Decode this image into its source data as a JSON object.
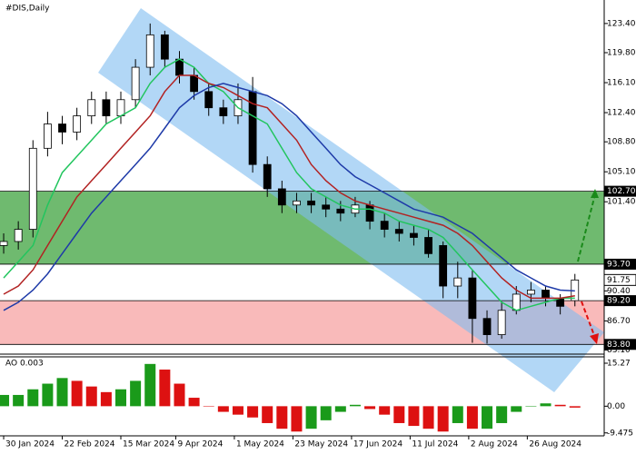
{
  "chart_data": [
    {
      "type": "candlestick",
      "title": "#DIS,Daily",
      "xlim": [
        -1,
        164
      ],
      "xticks": [
        {
          "value": 0,
          "label": "30 Jan 2024"
        },
        {
          "value": 16,
          "label": "22 Feb 2024"
        },
        {
          "value": 32,
          "label": "15 Mar 2024"
        },
        {
          "value": 47,
          "label": "9 Apr 2024"
        },
        {
          "value": 63,
          "label": "1 May 2024"
        },
        {
          "value": 79,
          "label": "23 May 2024"
        },
        {
          "value": 95,
          "label": "17 Jun 2024"
        },
        {
          "value": 111,
          "label": "11 Jul 2024"
        },
        {
          "value": 127,
          "label": "2 Aug 2024"
        },
        {
          "value": 143,
          "label": "26 Aug 2024"
        }
      ],
      "ylim": [
        82.6,
        126.3
      ],
      "yticks": [
        {
          "value": 123.4,
          "label": "123.40"
        },
        {
          "value": 119.8,
          "label": "119.80"
        },
        {
          "value": 116.1,
          "label": "116.10"
        },
        {
          "value": 112.4,
          "label": "112.40"
        },
        {
          "value": 108.8,
          "label": "108.80"
        },
        {
          "value": 105.1,
          "label": "105.10"
        },
        {
          "value": 101.4,
          "label": "101.40"
        },
        {
          "value": 90.4,
          "label": "90.40"
        },
        {
          "value": 86.7,
          "label": "86.70"
        },
        {
          "value": 83.1,
          "label": "83.10"
        }
      ],
      "x": [
        0,
        4,
        8,
        12,
        16,
        20,
        24,
        28,
        32,
        36,
        40,
        44,
        48,
        52,
        56,
        60,
        64,
        68,
        72,
        76,
        80,
        84,
        88,
        92,
        96,
        100,
        104,
        108,
        112,
        116,
        120,
        124,
        128,
        132,
        136,
        140,
        144,
        148,
        152,
        156
      ],
      "open": [
        96,
        96.5,
        98,
        108,
        111,
        110,
        112,
        114,
        112,
        114,
        118,
        122,
        119,
        117,
        115,
        113,
        112,
        115,
        106,
        103,
        101,
        101.5,
        101,
        100.5,
        100,
        101,
        99,
        98,
        97.5,
        97,
        96,
        91,
        92,
        87,
        85,
        88,
        90,
        90.5,
        89.5,
        89.2
      ],
      "high": [
        97.5,
        99,
        109,
        112.5,
        112,
        113,
        115,
        115,
        115,
        119,
        123.4,
        122.5,
        120,
        118,
        116,
        114,
        116,
        116.8,
        107,
        104,
        102.5,
        102.5,
        102,
        101.5,
        102,
        101.5,
        100,
        99,
        98.5,
        98,
        96.5,
        94,
        93,
        88,
        89,
        91,
        91.5,
        91,
        90,
        92.5
      ],
      "low": [
        95,
        95.5,
        97,
        107,
        108.5,
        109,
        111,
        111,
        111,
        113,
        117,
        118,
        116,
        114,
        112,
        111,
        111,
        105,
        102,
        100,
        100,
        100,
        99.5,
        99,
        99.5,
        98,
        97,
        96.5,
        96,
        94.5,
        89.5,
        89.5,
        84,
        83.9,
        84.5,
        87.5,
        89,
        88.5,
        87.5,
        88.5
      ],
      "close": [
        96.5,
        98,
        108,
        111,
        110,
        112,
        114,
        112,
        114,
        118,
        122,
        119,
        117,
        115,
        113,
        112,
        114,
        106,
        103,
        101,
        101.5,
        101,
        100.5,
        100,
        101,
        99,
        98,
        97.5,
        97,
        95,
        91,
        92,
        87,
        85,
        88,
        90,
        90.5,
        89.5,
        88.5,
        91.75
      ],
      "up_color": "#ffffff",
      "down_color": "#000000",
      "lines": [
        {
          "color": "#22c55e",
          "values": [
            92,
            94,
            96,
            101,
            105,
            107,
            109,
            111,
            112,
            113,
            116,
            118,
            119,
            118,
            116,
            115,
            113,
            112,
            111,
            108,
            105,
            103,
            102,
            101,
            100.5,
            100.5,
            100,
            99,
            98.5,
            98,
            97,
            95,
            93,
            91,
            89,
            88,
            88.5,
            89,
            89.5,
            89.5
          ]
        },
        {
          "color": "#b22222",
          "values": [
            90,
            91,
            93,
            96,
            99,
            102,
            104,
            106,
            108,
            110,
            112,
            115,
            117,
            117,
            116,
            115.5,
            114.5,
            113.5,
            113,
            111,
            109,
            106,
            104,
            102.5,
            101.5,
            101,
            100.5,
            100,
            99.5,
            99,
            98.5,
            97.5,
            96,
            94,
            92,
            90.5,
            89.5,
            89.5,
            89.5,
            89.8
          ]
        },
        {
          "color": "#1e3aa8",
          "values": [
            88,
            89,
            90.5,
            92.5,
            95,
            97.5,
            100,
            102,
            104,
            106,
            108,
            110.5,
            113,
            114.5,
            115.5,
            116,
            115.5,
            115,
            114.5,
            113.5,
            112,
            110,
            108,
            106,
            104.5,
            103.5,
            102.5,
            101.5,
            100.5,
            100,
            99.5,
            98.5,
            97.5,
            96,
            94.5,
            93,
            92,
            91,
            90.5,
            90.4
          ]
        }
      ],
      "zones": [
        {
          "color": "#3fa33f",
          "top": {
            "value": 102.7,
            "label": "102.70"
          },
          "bottom": {
            "value": 93.7,
            "label": "93.70"
          }
        },
        {
          "color": "#f7a3a3",
          "top": {
            "value": 89.2,
            "label": "89.20"
          },
          "bottom": {
            "value": 83.8,
            "label": "83.80"
          }
        }
      ],
      "last_price": {
        "value": 91.75,
        "label": "91.75"
      }
    },
    {
      "type": "histogram",
      "title": "AO 0.003",
      "xlim": [
        -1,
        164
      ],
      "x": [
        0,
        4,
        8,
        12,
        16,
        20,
        24,
        28,
        32,
        36,
        40,
        44,
        48,
        52,
        56,
        60,
        64,
        68,
        72,
        76,
        80,
        84,
        88,
        92,
        96,
        100,
        104,
        108,
        112,
        116,
        120,
        124,
        128,
        132,
        136,
        140,
        144,
        148,
        152,
        156
      ],
      "values": [
        4,
        4,
        6,
        8,
        10,
        9,
        7,
        5,
        6,
        9,
        15,
        13,
        8,
        3,
        0,
        -2,
        -3,
        -4,
        -6,
        -8,
        -9,
        -8,
        -5,
        -2,
        0.5,
        -1,
        -3,
        -6,
        -7,
        -8,
        -9,
        -6,
        -8,
        -8,
        -6,
        -2,
        0,
        1,
        0.5,
        -0.5
      ],
      "ylim": [
        -10.2,
        17.2
      ],
      "yticks": [
        15.27,
        {
          "value": 0,
          "label": "0.00"
        },
        -9.475
      ],
      "up_color": "#1a9a1a",
      "down_color": "#dd1111"
    }
  ]
}
